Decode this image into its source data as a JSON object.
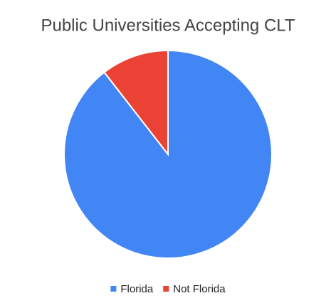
{
  "chart_data": {
    "type": "pie",
    "title": "Public Universities Accepting CLT",
    "categories": [
      "Florida",
      "Not Florida"
    ],
    "values": [
      89.5,
      10.5
    ],
    "colors": [
      "#4285f4",
      "#ea4335"
    ],
    "legend": "bottom"
  }
}
